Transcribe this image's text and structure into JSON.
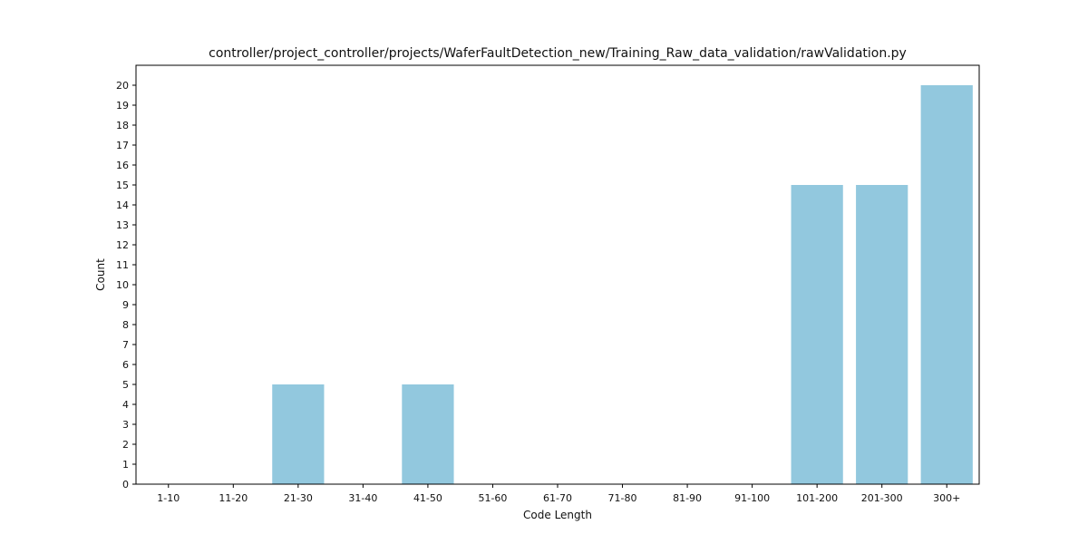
{
  "chart_data": {
    "type": "bar",
    "title": "controller/project_controller/projects/WaferFaultDetection_new/Training_Raw_data_validation/rawValidation.py",
    "xlabel": "Code Length",
    "ylabel": "Count",
    "categories": [
      "1-10",
      "11-20",
      "21-30",
      "31-40",
      "41-50",
      "51-60",
      "61-70",
      "71-80",
      "81-90",
      "91-100",
      "101-200",
      "201-300",
      "300+"
    ],
    "values": [
      0,
      0,
      5,
      0,
      5,
      0,
      0,
      0,
      0,
      0,
      15,
      15,
      20
    ],
    "ylim": [
      0,
      21
    ],
    "yticks": [
      0,
      1,
      2,
      3,
      4,
      5,
      6,
      7,
      8,
      9,
      10,
      11,
      12,
      13,
      14,
      15,
      16,
      17,
      18,
      19,
      20
    ],
    "grid": false,
    "legend": "none",
    "bar_color": "#92c8de"
  }
}
